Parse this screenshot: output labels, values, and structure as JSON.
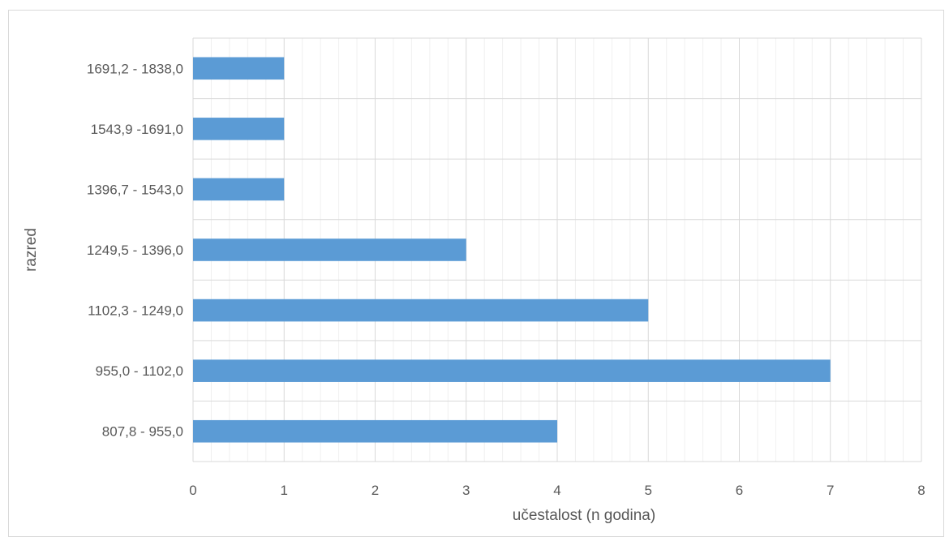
{
  "chart_data": {
    "type": "bar",
    "orientation": "horizontal",
    "title": "",
    "xlabel": "učestalost (n godina)",
    "ylabel": "razred",
    "categories": [
      "807,8 - 955,0",
      "955,0 - 1102,0",
      "1102,3 - 1249,0",
      "1249,5 - 1396,0",
      "1396,7 - 1543,0",
      "1543,9 -1691,0",
      "1691,2 - 1838,0"
    ],
    "series": [
      {
        "values": [
          4,
          7,
          5,
          3,
          1,
          1,
          1
        ],
        "color": "#5b9bd5"
      }
    ],
    "xlim": [
      0,
      8
    ],
    "x_ticks": [
      "0",
      "1",
      "2",
      "3",
      "4",
      "5",
      "6",
      "7",
      "8"
    ],
    "major_grid": true,
    "minor_grid": true,
    "legend": "none"
  }
}
